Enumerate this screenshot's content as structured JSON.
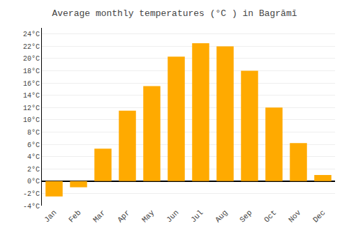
{
  "chart_data": {
    "type": "bar",
    "title": "Average monthly temperatures (°C ) in Bagrāmī",
    "categories": [
      "Jan",
      "Feb",
      "Mar",
      "Apr",
      "May",
      "Jun",
      "Jul",
      "Aug",
      "Sep",
      "Oct",
      "Nov",
      "Dec"
    ],
    "values": [
      -2.5,
      -1.0,
      5.3,
      11.5,
      15.5,
      20.3,
      22.5,
      22.0,
      18.0,
      12.0,
      6.2,
      1.0
    ],
    "color": "#FFAA00",
    "ylim": [
      -4,
      25
    ],
    "yticks": [
      {
        "value": -4,
        "label": "-4°C"
      },
      {
        "value": -2,
        "label": "-2°C"
      },
      {
        "value": 0,
        "label": "0°C"
      },
      {
        "value": 2,
        "label": "2°C"
      },
      {
        "value": 4,
        "label": "4°C"
      },
      {
        "value": 6,
        "label": "6°C"
      },
      {
        "value": 8,
        "label": "8°C"
      },
      {
        "value": 10,
        "label": "10°C"
      },
      {
        "value": 12,
        "label": "12°C"
      },
      {
        "value": 14,
        "label": "14°C"
      },
      {
        "value": 16,
        "label": "16°C"
      },
      {
        "value": 18,
        "label": "18°C"
      },
      {
        "value": 20,
        "label": "20°C"
      },
      {
        "value": 22,
        "label": "22°C"
      },
      {
        "value": 24,
        "label": "24°C"
      }
    ],
    "grid": true
  }
}
